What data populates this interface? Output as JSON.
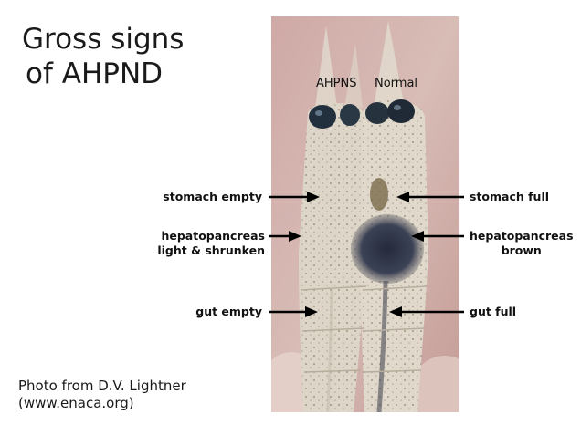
{
  "title": {
    "line1": "Gross signs",
    "line2": "of AHPND"
  },
  "credit": {
    "line1": "Photo from D.V. Lightner",
    "line2": "(www.enaca.org)"
  },
  "photo": {
    "label_left": "AHPNS",
    "label_right": "Normal"
  },
  "annotations": {
    "left": [
      {
        "text": "stomach empty"
      },
      {
        "line1": "hepatopancreas",
        "line2": "light & shrunken"
      },
      {
        "text": "gut empty"
      }
    ],
    "right": [
      {
        "text": "stomach full"
      },
      {
        "line1": "hepatopancreas",
        "line2": "brown"
      },
      {
        "text": "gut full"
      }
    ]
  },
  "colors": {
    "arrow": "#000000",
    "background": "#ffffff",
    "shrimp_body": "#d9d2c4",
    "hepatopancreas_normal": "#2e3548",
    "eye": "#1f2a36"
  }
}
